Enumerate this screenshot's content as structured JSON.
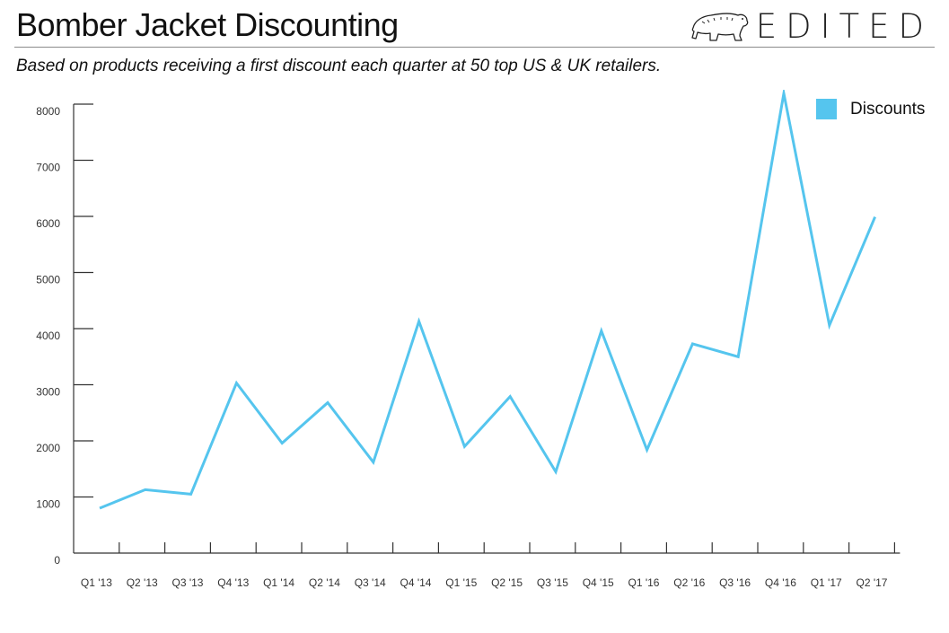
{
  "header": {
    "title": "Bomber Jacket Discounting",
    "brand": "EDITED",
    "brand_icon": "polar-bear-icon"
  },
  "subtitle": "Based on products receiving a first discount each quarter at 50 top US & UK retailers.",
  "colors": {
    "series": "#55c5ee",
    "axis": "#333333",
    "text": "#111111",
    "rule": "#8c8c8c"
  },
  "chart_data": {
    "type": "line",
    "title": "",
    "xlabel": "",
    "ylabel": "",
    "categories": [
      "Q1 '13",
      "Q2 '13",
      "Q3 '13",
      "Q4 '13",
      "Q1 '14",
      "Q2 '14",
      "Q3 '14",
      "Q4 '14",
      "Q1 '15",
      "Q2 '15",
      "Q3 '15",
      "Q4 '15",
      "Q1 '16",
      "Q2 '16",
      "Q3 '16",
      "Q4 '16",
      "Q1 '17",
      "Q2 '17"
    ],
    "series": [
      {
        "name": "Discounts",
        "values": [
          800,
          1130,
          1050,
          3030,
          1960,
          2680,
          1620,
          4130,
          1900,
          2790,
          1450,
          3960,
          1840,
          3730,
          3500,
          8190,
          4060,
          5990
        ]
      }
    ],
    "y_ticks": [
      "0",
      "1000",
      "2000",
      "3000",
      "4000",
      "5000",
      "6000",
      "7000",
      "8000"
    ],
    "ylim": [
      0,
      8000
    ],
    "grid": false,
    "legend": "top-right"
  }
}
